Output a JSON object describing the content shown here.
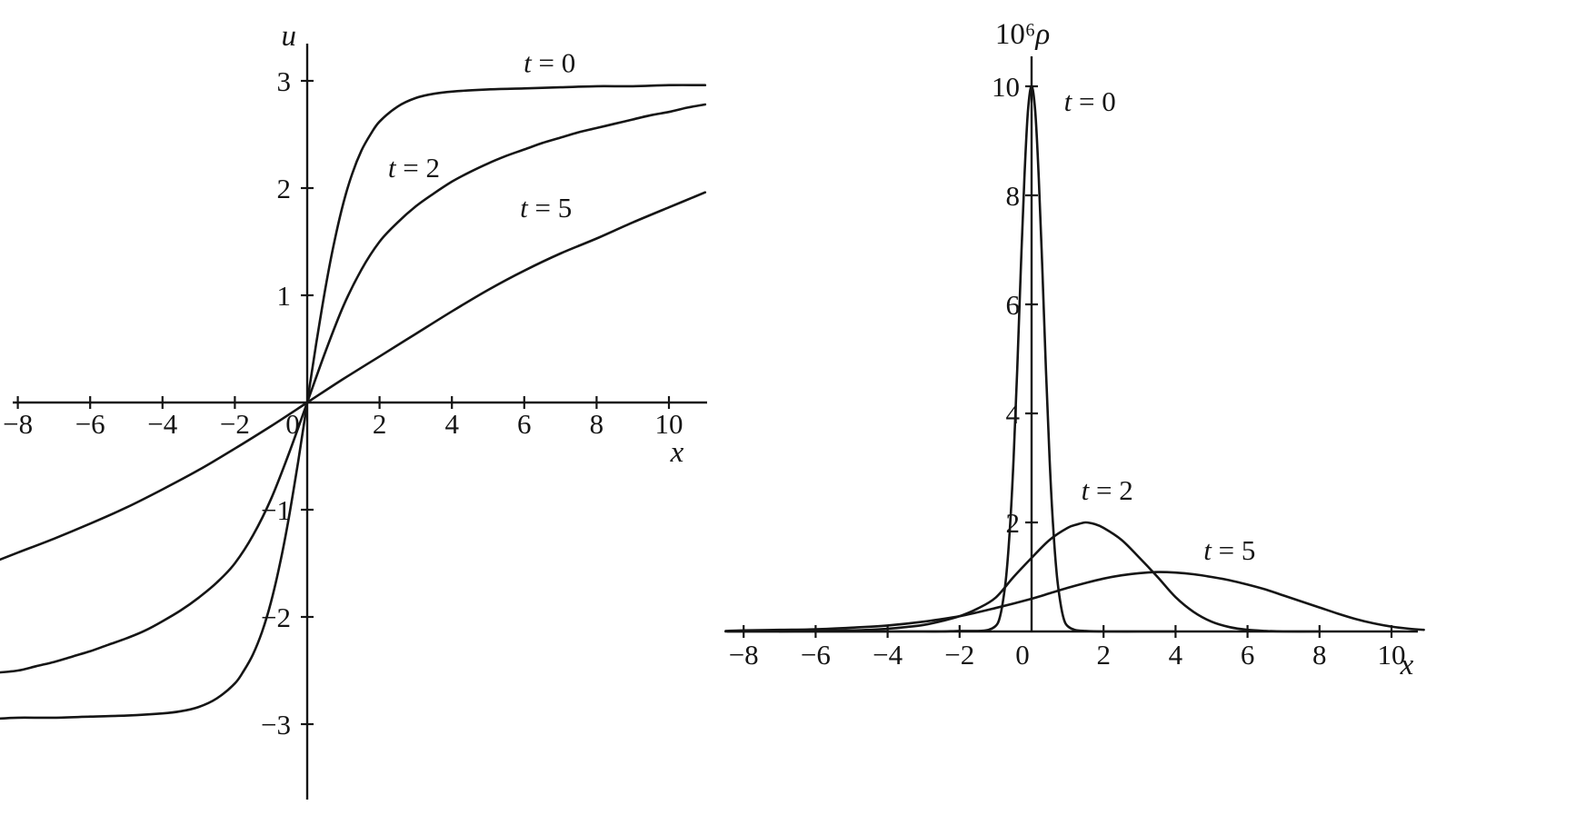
{
  "figure": {
    "background": "#ffffff",
    "line_color": "#151515",
    "text_color": "#151515"
  },
  "chart_data": [
    {
      "id": "velocity-profile",
      "type": "line",
      "title": "",
      "xlabel": "x",
      "ylabel": "u",
      "xlim": [
        -8.6,
        11.1
      ],
      "ylim": [
        -3.45,
        3.35
      ],
      "grid": false,
      "legend": "inline-annotations",
      "x_ticks": [
        {
          "v": -8,
          "label": "−8"
        },
        {
          "v": -6,
          "label": "−6"
        },
        {
          "v": -4,
          "label": "−4"
        },
        {
          "v": -2,
          "label": "−2"
        },
        {
          "v": 2,
          "label": "2"
        },
        {
          "v": 4,
          "label": "4"
        },
        {
          "v": 6,
          "label": "6"
        },
        {
          "v": 8,
          "label": "8"
        },
        {
          "v": 10,
          "label": "10"
        }
      ],
      "origin_label": "0",
      "y_ticks": [
        {
          "v": 3,
          "label": "3"
        },
        {
          "v": 2,
          "label": "2"
        },
        {
          "v": 1,
          "label": "1"
        },
        {
          "v": -1,
          "label": "−1"
        },
        {
          "v": -2,
          "label": "−2"
        },
        {
          "v": -3,
          "label": "−3"
        }
      ],
      "series": [
        {
          "name": "t = 0",
          "points": [
            [
              -8.6,
              -2.95
            ],
            [
              -8,
              -2.94
            ],
            [
              -7,
              -2.94
            ],
            [
              -6,
              -2.93
            ],
            [
              -5,
              -2.92
            ],
            [
              -4,
              -2.9
            ],
            [
              -3.5,
              -2.88
            ],
            [
              -3,
              -2.84
            ],
            [
              -2.5,
              -2.76
            ],
            [
              -2,
              -2.62
            ],
            [
              -1.75,
              -2.5
            ],
            [
              -1.5,
              -2.35
            ],
            [
              -1.25,
              -2.14
            ],
            [
              -1,
              -1.86
            ],
            [
              -0.75,
              -1.5
            ],
            [
              -0.5,
              -1.06
            ],
            [
              -0.25,
              -0.55
            ],
            [
              0,
              0
            ],
            [
              0.25,
              0.55
            ],
            [
              0.5,
              1.06
            ],
            [
              0.75,
              1.5
            ],
            [
              1,
              1.86
            ],
            [
              1.25,
              2.14
            ],
            [
              1.5,
              2.35
            ],
            [
              1.75,
              2.5
            ],
            [
              2,
              2.62
            ],
            [
              2.5,
              2.76
            ],
            [
              3,
              2.84
            ],
            [
              3.5,
              2.88
            ],
            [
              4,
              2.9
            ],
            [
              5,
              2.92
            ],
            [
              6,
              2.93
            ],
            [
              7,
              2.94
            ],
            [
              8,
              2.95
            ],
            [
              9,
              2.95
            ],
            [
              10,
              2.96
            ],
            [
              11,
              2.96
            ]
          ]
        },
        {
          "name": "t = 2",
          "points": [
            [
              -8.6,
              -2.52
            ],
            [
              -8,
              -2.5
            ],
            [
              -7.5,
              -2.46
            ],
            [
              -7,
              -2.42
            ],
            [
              -6.5,
              -2.37
            ],
            [
              -6,
              -2.32
            ],
            [
              -5.5,
              -2.26
            ],
            [
              -5,
              -2.2
            ],
            [
              -4.5,
              -2.13
            ],
            [
              -4,
              -2.04
            ],
            [
              -3.5,
              -1.94
            ],
            [
              -3,
              -1.82
            ],
            [
              -2.5,
              -1.68
            ],
            [
              -2,
              -1.5
            ],
            [
              -1.5,
              -1.24
            ],
            [
              -1,
              -0.9
            ],
            [
              -0.5,
              -0.47
            ],
            [
              0,
              0
            ],
            [
              0.5,
              0.47
            ],
            [
              1,
              0.9
            ],
            [
              1.5,
              1.24
            ],
            [
              2,
              1.5
            ],
            [
              2.5,
              1.68
            ],
            [
              3,
              1.83
            ],
            [
              3.5,
              1.95
            ],
            [
              4,
              2.06
            ],
            [
              4.5,
              2.15
            ],
            [
              5,
              2.23
            ],
            [
              5.5,
              2.3
            ],
            [
              6,
              2.36
            ],
            [
              6.5,
              2.42
            ],
            [
              7,
              2.47
            ],
            [
              7.5,
              2.52
            ],
            [
              8,
              2.56
            ],
            [
              8.5,
              2.6
            ],
            [
              9,
              2.64
            ],
            [
              9.5,
              2.68
            ],
            [
              10,
              2.71
            ],
            [
              10.5,
              2.75
            ],
            [
              11,
              2.78
            ]
          ]
        },
        {
          "name": "t = 5",
          "points": [
            [
              -8.6,
              -1.48
            ],
            [
              -8,
              -1.4
            ],
            [
              -7,
              -1.27
            ],
            [
              -6,
              -1.13
            ],
            [
              -5,
              -0.98
            ],
            [
              -4,
              -0.81
            ],
            [
              -3,
              -0.63
            ],
            [
              -2,
              -0.43
            ],
            [
              -1,
              -0.22
            ],
            [
              0,
              0
            ],
            [
              1,
              0.22
            ],
            [
              2,
              0.43
            ],
            [
              3,
              0.64
            ],
            [
              4,
              0.85
            ],
            [
              5,
              1.05
            ],
            [
              6,
              1.23
            ],
            [
              7,
              1.39
            ],
            [
              8,
              1.53
            ],
            [
              9,
              1.68
            ],
            [
              10,
              1.82
            ],
            [
              11,
              1.96
            ]
          ]
        }
      ],
      "annotations": [
        {
          "label": "t = 0",
          "x": 6.7,
          "y": 3.08
        },
        {
          "label": "t = 2",
          "x": 2.95,
          "y": 2.1
        },
        {
          "label": "t = 5",
          "x": 6.6,
          "y": 1.73
        }
      ]
    },
    {
      "id": "density-profile",
      "type": "line",
      "title": "",
      "xlabel": "x",
      "ylabel": "10⁶ρ",
      "xlim": [
        -8.5,
        10.9
      ],
      "ylim": [
        0,
        10.6
      ],
      "grid": false,
      "legend": "inline-annotations",
      "x_ticks": [
        {
          "v": -8,
          "label": "−8"
        },
        {
          "v": -6,
          "label": "−6"
        },
        {
          "v": -4,
          "label": "−4"
        },
        {
          "v": -2,
          "label": "−2"
        },
        {
          "v": 2,
          "label": "2"
        },
        {
          "v": 4,
          "label": "4"
        },
        {
          "v": 6,
          "label": "6"
        },
        {
          "v": 8,
          "label": "8"
        },
        {
          "v": 10,
          "label": "10"
        }
      ],
      "origin_label": "0",
      "y_ticks": [
        {
          "v": 10,
          "label": "10"
        },
        {
          "v": 8,
          "label": "8"
        },
        {
          "v": 6,
          "label": "6"
        },
        {
          "v": 4,
          "label": "4"
        },
        {
          "v": 2,
          "label": "2"
        }
      ],
      "series": [
        {
          "name": "t = 0",
          "points": [
            [
              -8.5,
              0
            ],
            [
              -6,
              0
            ],
            [
              -4,
              0
            ],
            [
              -3,
              0
            ],
            [
              -2.5,
              0
            ],
            [
              -2,
              0.01
            ],
            [
              -1.5,
              0.01
            ],
            [
              -1.2,
              0.03
            ],
            [
              -1,
              0.1
            ],
            [
              -0.9,
              0.22
            ],
            [
              -0.8,
              0.53
            ],
            [
              -0.7,
              1.05
            ],
            [
              -0.6,
              1.91
            ],
            [
              -0.5,
              3.17
            ],
            [
              -0.4,
              4.8
            ],
            [
              -0.3,
              6.62
            ],
            [
              -0.2,
              8.32
            ],
            [
              -0.1,
              9.55
            ],
            [
              0,
              10
            ],
            [
              0.1,
              9.55
            ],
            [
              0.2,
              8.32
            ],
            [
              0.3,
              6.62
            ],
            [
              0.4,
              4.8
            ],
            [
              0.5,
              3.17
            ],
            [
              0.6,
              1.91
            ],
            [
              0.7,
              1.05
            ],
            [
              0.8,
              0.53
            ],
            [
              0.9,
              0.22
            ],
            [
              1,
              0.1
            ],
            [
              1.2,
              0.03
            ],
            [
              1.5,
              0.01
            ],
            [
              2,
              0
            ],
            [
              3,
              0
            ],
            [
              4,
              0
            ]
          ]
        },
        {
          "name": "t = 2",
          "points": [
            [
              -7,
              0
            ],
            [
              -6,
              0.01
            ],
            [
              -5,
              0.02
            ],
            [
              -4.5,
              0.03
            ],
            [
              -4,
              0.05
            ],
            [
              -3.5,
              0.08
            ],
            [
              -3,
              0.12
            ],
            [
              -2.5,
              0.19
            ],
            [
              -2,
              0.28
            ],
            [
              -1.5,
              0.42
            ],
            [
              -1,
              0.62
            ],
            [
              -0.5,
              1.0
            ],
            [
              0,
              1.35
            ],
            [
              0.5,
              1.68
            ],
            [
              1,
              1.9
            ],
            [
              1.25,
              1.96
            ],
            [
              1.5,
              2.0
            ],
            [
              1.75,
              1.97
            ],
            [
              2,
              1.9
            ],
            [
              2.5,
              1.68
            ],
            [
              3,
              1.35
            ],
            [
              3.5,
              1.0
            ],
            [
              4,
              0.63
            ],
            [
              4.5,
              0.36
            ],
            [
              5,
              0.18
            ],
            [
              5.5,
              0.08
            ],
            [
              6,
              0.03
            ],
            [
              6.5,
              0.01
            ],
            [
              7,
              0
            ],
            [
              8,
              0
            ]
          ]
        },
        {
          "name": "t = 5",
          "points": [
            [
              -8.5,
              0.01
            ],
            [
              -8,
              0.02
            ],
            [
              -7,
              0.03
            ],
            [
              -6,
              0.04
            ],
            [
              -5,
              0.07
            ],
            [
              -4,
              0.11
            ],
            [
              -3,
              0.18
            ],
            [
              -2,
              0.28
            ],
            [
              -1,
              0.43
            ],
            [
              0,
              0.6
            ],
            [
              0.5,
              0.7
            ],
            [
              1,
              0.8
            ],
            [
              1.5,
              0.89
            ],
            [
              2,
              0.97
            ],
            [
              2.5,
              1.03
            ],
            [
              3,
              1.07
            ],
            [
              3.5,
              1.09
            ],
            [
              4,
              1.08
            ],
            [
              4.5,
              1.05
            ],
            [
              5,
              1.0
            ],
            [
              5.5,
              0.94
            ],
            [
              6,
              0.86
            ],
            [
              6.5,
              0.77
            ],
            [
              7,
              0.66
            ],
            [
              7.5,
              0.55
            ],
            [
              8,
              0.44
            ],
            [
              8.5,
              0.33
            ],
            [
              9,
              0.23
            ],
            [
              9.5,
              0.15
            ],
            [
              10,
              0.09
            ],
            [
              10.5,
              0.05
            ],
            [
              10.9,
              0.03
            ]
          ]
        }
      ],
      "annotations": [
        {
          "label": "t = 0",
          "x": 1.62,
          "y": 9.55
        },
        {
          "label": "t = 2",
          "x": 2.1,
          "y": 2.42
        },
        {
          "label": "t = 5",
          "x": 5.5,
          "y": 1.32
        }
      ]
    }
  ]
}
